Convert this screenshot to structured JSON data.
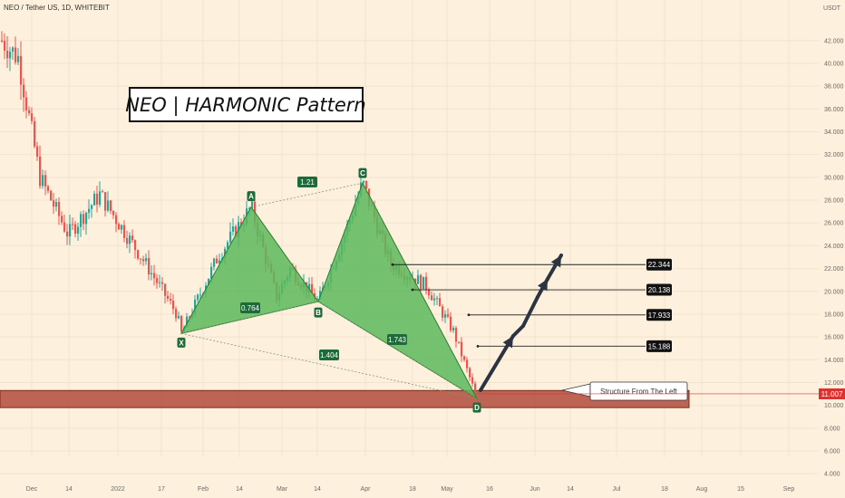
{
  "header": {
    "symbol": "NEO / Tether US, 1D, WHITEBIT",
    "currency": "USDT"
  },
  "title": "NEO | HARMONIC Pattern",
  "annotation": "Structure From The Left",
  "chart_data": {
    "type": "candlestick",
    "symbol": "NEO / Tether US",
    "timeframe": "1D",
    "exchange": "WHITEBIT",
    "currency": "USDT",
    "ylim": [
      3,
      44
    ],
    "yticks": [
      4,
      6,
      8,
      10,
      12,
      14,
      16,
      18,
      20,
      22,
      24,
      26,
      28,
      30,
      32,
      34,
      36,
      38,
      40,
      42
    ],
    "x_tick_labels": [
      "Dec",
      "14",
      "2022",
      "17",
      "Feb",
      "14",
      "Mar",
      "14",
      "Apr",
      "18",
      "May",
      "16",
      "Jun",
      "14",
      "Jul",
      "18",
      "Aug",
      "15",
      "Sep"
    ],
    "current_price": "11.007",
    "pattern_points": [
      {
        "label": "X",
        "price": 16.3
      },
      {
        "label": "A",
        "price": 27.4
      },
      {
        "label": "B",
        "price": 19.1
      },
      {
        "label": "C",
        "price": 29.5
      },
      {
        "label": "D",
        "price": 10.6
      }
    ],
    "ratios": [
      "1.21",
      "0.764",
      "1.404",
      "1.743"
    ],
    "targets": [
      "22.344",
      "20.138",
      "17.933",
      "15.188"
    ],
    "support_zone": [
      9.8,
      11.3
    ]
  },
  "colors": {
    "background": "#fdf0dc",
    "up_candle": "#26a69a",
    "down_candle": "#ef5350",
    "pattern_fill": "#5cb85c",
    "zone_fill": "#b34b3c",
    "label_bg": "#1e6b3a",
    "target_bg": "#111111",
    "price_line": "#e03030"
  }
}
